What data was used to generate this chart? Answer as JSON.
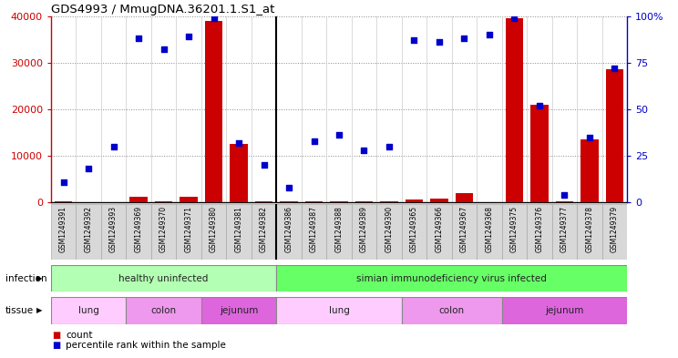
{
  "title": "GDS4993 / MmugDNA.36201.1.S1_at",
  "samples": [
    "GSM1249391",
    "GSM1249392",
    "GSM1249393",
    "GSM1249369",
    "GSM1249370",
    "GSM1249371",
    "GSM1249380",
    "GSM1249381",
    "GSM1249382",
    "GSM1249386",
    "GSM1249387",
    "GSM1249388",
    "GSM1249389",
    "GSM1249390",
    "GSM1249365",
    "GSM1249366",
    "GSM1249367",
    "GSM1249368",
    "GSM1249375",
    "GSM1249376",
    "GSM1249377",
    "GSM1249378",
    "GSM1249379"
  ],
  "counts": [
    200,
    100,
    100,
    1200,
    300,
    1200,
    39000,
    12500,
    200,
    200,
    200,
    200,
    200,
    200,
    600,
    700,
    2000,
    100,
    39500,
    21000,
    200,
    13500,
    28500
  ],
  "percentiles": [
    11,
    18,
    30,
    88,
    82,
    89,
    99,
    32,
    20,
    8,
    33,
    36,
    28,
    30,
    87,
    86,
    88,
    90,
    99,
    52,
    4,
    35,
    72
  ],
  "bar_color": "#cc0000",
  "dot_color": "#0000cc",
  "ylim_left": [
    0,
    40000
  ],
  "ylim_right": [
    0,
    100
  ],
  "yticks_left": [
    0,
    10000,
    20000,
    30000,
    40000
  ],
  "yticks_right": [
    0,
    25,
    50,
    75,
    100
  ],
  "infection_groups": [
    {
      "label": "healthy uninfected",
      "start": 0,
      "end": 9,
      "color": "#b3ffb3"
    },
    {
      "label": "simian immunodeficiency virus infected",
      "start": 9,
      "end": 23,
      "color": "#66ff66"
    }
  ],
  "tissue_groups": [
    {
      "label": "lung",
      "start": 0,
      "end": 3,
      "color": "#ffccff"
    },
    {
      "label": "colon",
      "start": 3,
      "end": 6,
      "color": "#ee99ee"
    },
    {
      "label": "jejunum",
      "start": 6,
      "end": 9,
      "color": "#dd66dd"
    },
    {
      "label": "lung",
      "start": 9,
      "end": 14,
      "color": "#ffccff"
    },
    {
      "label": "colon",
      "start": 14,
      "end": 18,
      "color": "#ee99ee"
    },
    {
      "label": "jejunum",
      "start": 18,
      "end": 23,
      "color": "#dd66dd"
    }
  ],
  "infection_label": "infection",
  "tissue_label": "tissue",
  "legend_count_label": "count",
  "legend_pct_label": "percentile rank within the sample",
  "left_axis_color": "#cc0000",
  "right_axis_color": "#0000cc",
  "bg_color": "#ffffff",
  "grid_color": "#888888",
  "sample_bg_color": "#d8d8d8",
  "sample_border_color": "#aaaaaa",
  "healthy_infected_div": 9
}
